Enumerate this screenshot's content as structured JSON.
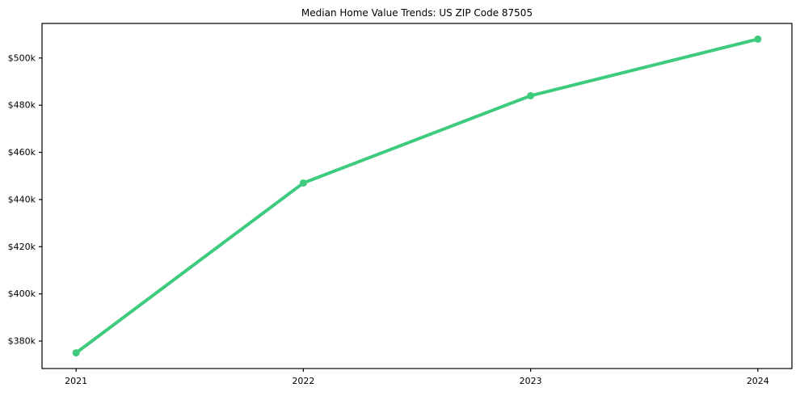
{
  "page": {
    "background": "#ffffff"
  },
  "chart_data": {
    "type": "line",
    "title": "Median Home Value Trends: US ZIP Code 87505",
    "xlabel": "",
    "ylabel": "",
    "x": [
      2021,
      2022,
      2023,
      2024
    ],
    "series": [
      {
        "name": "median-home-value",
        "values": [
          375,
          447,
          484,
          508
        ],
        "unit": "thousand USD"
      }
    ],
    "x_tick_labels": [
      "2021",
      "2022",
      "2023",
      "2024"
    ],
    "y_tick_values": [
      380,
      400,
      420,
      440,
      460,
      480,
      500
    ],
    "y_tick_labels": [
      "$380k",
      "$400k",
      "$420k",
      "$440k",
      "$460k",
      "$480k",
      "$500k"
    ],
    "xlim": [
      2020.85,
      2024.15
    ],
    "ylim": [
      368.35,
      514.65
    ],
    "grid": false,
    "legend_position": "none",
    "line_color": "#3ecb7e",
    "axis_color": "#000000",
    "background_color": "#ffffff",
    "line_width": 4,
    "marker_radius": 4.5
  }
}
